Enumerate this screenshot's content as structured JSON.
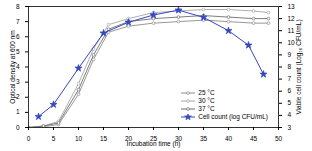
{
  "chart_data": {
    "type": "line",
    "x_label": "Incubation time (h)",
    "y_label": "Optical density at 600 nm",
    "y2_label": "Viable cell count (Log₁₀ CFU/mL)",
    "xlim": [
      0,
      50
    ],
    "xticks": [
      0,
      5,
      10,
      15,
      20,
      25,
      30,
      35,
      40,
      45,
      50
    ],
    "ylim": [
      0,
      8
    ],
    "yticks": [
      0,
      1,
      2,
      3,
      4,
      5,
      6,
      7,
      8
    ],
    "y2lim": [
      3,
      13
    ],
    "y2ticks": [
      3,
      4,
      5,
      6,
      7,
      8,
      9,
      10,
      11,
      12,
      13
    ],
    "legend": "lower right",
    "series": [
      {
        "name": "25 °C",
        "color": "#8c8c8c",
        "marker": "circle",
        "x": [
          0,
          3,
          6,
          10,
          13,
          16,
          20,
          25,
          30,
          35,
          40,
          45,
          48
        ],
        "values": [
          0,
          0.05,
          0.2,
          2.2,
          4.5,
          6.3,
          6.7,
          6.9,
          7.0,
          7.1,
          7.0,
          6.9,
          6.9
        ]
      },
      {
        "name": "30 °C",
        "color": "#a6a6a6",
        "marker": "circle",
        "x": [
          0,
          3,
          6,
          10,
          13,
          16,
          20,
          25,
          30,
          35,
          40,
          45,
          48
        ],
        "values": [
          0,
          0.1,
          0.4,
          2.9,
          5.2,
          6.8,
          7.2,
          7.6,
          7.7,
          7.8,
          7.8,
          7.7,
          7.6
        ]
      },
      {
        "name": "37 °C",
        "color": "#6e6e6e",
        "marker": "circle",
        "x": [
          0,
          3,
          6,
          10,
          13,
          16,
          20,
          25,
          30,
          35,
          40,
          45,
          48
        ],
        "values": [
          0,
          0.1,
          0.3,
          2.5,
          4.8,
          6.5,
          7.0,
          7.2,
          7.3,
          7.4,
          7.3,
          7.2,
          7.2
        ]
      },
      {
        "name": "Cell count (log CFU/mL)",
        "color": "#3448c0",
        "marker": "star",
        "axis": "y2",
        "x": [
          2,
          5,
          10,
          15,
          20,
          25,
          30,
          35,
          40,
          44,
          47
        ],
        "values": [
          3.9,
          4.9,
          7.9,
          10.8,
          11.7,
          12.3,
          12.7,
          12.1,
          11.0,
          9.8,
          7.4
        ]
      }
    ]
  }
}
